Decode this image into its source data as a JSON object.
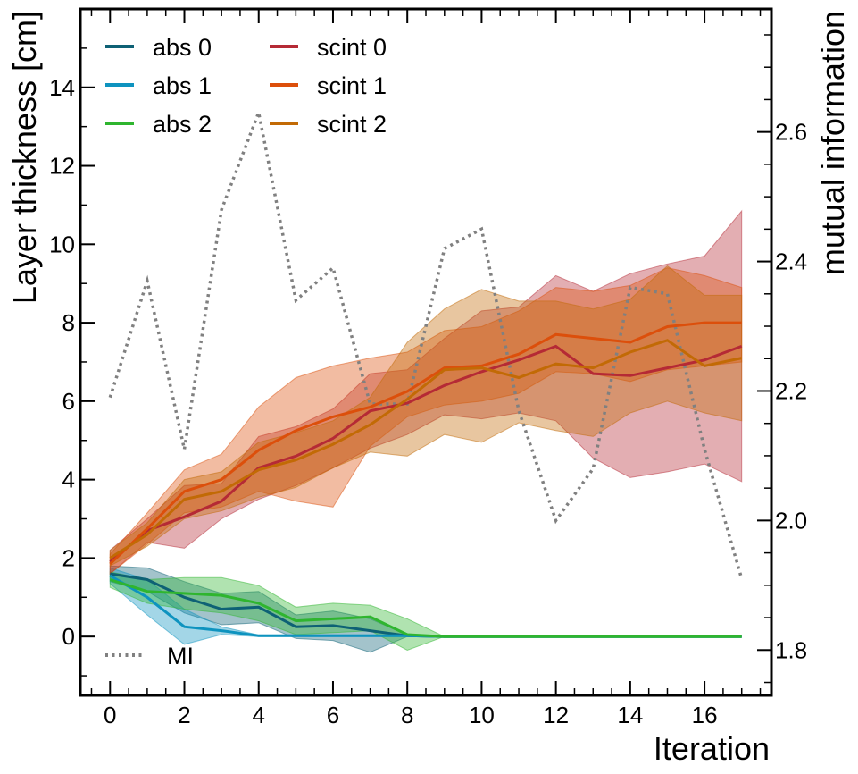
{
  "chart_data": {
    "type": "line",
    "xlabel": "Iteration",
    "ylabel": "Layer thickness [cm]",
    "y2label": "mutual information",
    "xlim": [
      -0.8,
      17.8
    ],
    "ylim": [
      -1.5,
      16
    ],
    "y2lim": [
      1.73,
      2.79
    ],
    "xticks": [
      0,
      2,
      4,
      6,
      8,
      10,
      12,
      14,
      16
    ],
    "yticks": [
      0,
      2,
      4,
      6,
      8,
      10,
      12,
      14
    ],
    "y2ticks": [
      1.8,
      2.0,
      2.2,
      2.4,
      2.6
    ],
    "x": [
      0,
      1,
      2,
      3,
      4,
      5,
      6,
      7,
      8,
      9,
      10,
      11,
      12,
      13,
      14,
      15,
      16,
      17
    ],
    "series": [
      {
        "name": "abs 0",
        "color": "#0e6175",
        "values": [
          1.6,
          1.45,
          1.0,
          0.7,
          0.75,
          0.25,
          0.28,
          0.15,
          0.02,
          0,
          0,
          0,
          0,
          0,
          0,
          0,
          0,
          0
        ],
        "lower": [
          1.4,
          1.15,
          0.6,
          0.3,
          0.35,
          -0.05,
          -0.1,
          -0.4,
          0,
          0,
          0,
          0,
          0,
          0,
          0,
          0,
          0,
          0
        ],
        "upper": [
          1.8,
          1.75,
          1.4,
          1.1,
          1.15,
          0.55,
          0.65,
          0.45,
          0.05,
          0,
          0,
          0,
          0,
          0,
          0,
          0,
          0,
          0
        ]
      },
      {
        "name": "abs 1",
        "color": "#0e93bf",
        "values": [
          1.55,
          1.0,
          0.25,
          0.15,
          0.02,
          0.02,
          0.02,
          0.02,
          0.02,
          0,
          0,
          0,
          0,
          0,
          0,
          0,
          0,
          0
        ],
        "lower": [
          1.35,
          0.55,
          -0.2,
          0.05,
          0,
          0,
          0,
          0,
          0,
          0,
          0,
          0,
          0,
          0,
          0,
          0,
          0,
          0
        ],
        "upper": [
          1.75,
          1.45,
          0.7,
          0.25,
          0.04,
          0.04,
          0.04,
          0.04,
          0.04,
          0,
          0,
          0,
          0,
          0,
          0,
          0,
          0,
          0
        ]
      },
      {
        "name": "abs 2",
        "color": "#2fb52f",
        "values": [
          1.45,
          1.15,
          1.1,
          1.05,
          0.85,
          0.4,
          0.45,
          0.5,
          0.05,
          0,
          0,
          0,
          0,
          0,
          0,
          0,
          0,
          0
        ],
        "lower": [
          1.25,
          0.85,
          0.7,
          0.6,
          0.4,
          0.05,
          0.1,
          0.15,
          -0.35,
          0,
          0,
          0,
          0,
          0,
          0,
          0,
          0,
          0
        ],
        "upper": [
          1.65,
          1.45,
          1.5,
          1.5,
          1.3,
          0.75,
          0.85,
          0.8,
          0.45,
          0,
          0,
          0,
          0,
          0,
          0,
          0,
          0,
          0
        ]
      },
      {
        "name": "scint 0",
        "color": "#b52a35",
        "values": [
          1.9,
          2.7,
          3.05,
          3.45,
          4.3,
          4.6,
          5.05,
          5.75,
          5.95,
          6.4,
          6.75,
          7.05,
          7.4,
          6.7,
          6.65,
          6.85,
          7.05,
          7.4
        ],
        "lower": [
          1.6,
          2.4,
          2.25,
          3.0,
          3.5,
          3.85,
          4.3,
          4.8,
          5.15,
          5.65,
          5.55,
          5.7,
          5.5,
          4.55,
          4.05,
          4.2,
          4.4,
          3.95
        ],
        "upper": [
          2.2,
          3.0,
          3.85,
          3.9,
          5.1,
          5.35,
          5.8,
          6.7,
          6.8,
          7.6,
          8.3,
          8.4,
          9.2,
          8.8,
          9.25,
          9.5,
          9.7,
          10.85
        ]
      },
      {
        "name": "scint 1",
        "color": "#dc4f0b",
        "values": [
          1.85,
          2.75,
          3.7,
          4.0,
          4.75,
          5.25,
          5.6,
          5.85,
          6.25,
          6.85,
          6.9,
          7.2,
          7.7,
          7.6,
          7.5,
          7.9,
          8.0,
          8.0
        ],
        "lower": [
          1.6,
          2.35,
          3.15,
          3.3,
          3.7,
          3.45,
          3.3,
          4.85,
          5.6,
          5.9,
          6.0,
          6.2,
          6.75,
          6.7,
          6.5,
          6.8,
          6.9,
          7.0
        ],
        "upper": [
          2.1,
          3.15,
          4.25,
          4.65,
          5.85,
          6.6,
          6.9,
          7.1,
          7.25,
          7.8,
          7.9,
          8.3,
          8.9,
          8.8,
          8.95,
          9.4,
          9.2,
          8.9
        ]
      },
      {
        "name": "scint 2",
        "color": "#c26a05",
        "values": [
          2.0,
          2.6,
          3.5,
          3.7,
          4.25,
          4.5,
          4.9,
          5.4,
          6.05,
          6.8,
          6.85,
          6.6,
          6.95,
          6.85,
          7.25,
          7.55,
          6.9,
          7.1
        ],
        "lower": [
          1.8,
          2.3,
          3.0,
          3.2,
          3.55,
          3.8,
          4.3,
          4.7,
          4.6,
          5.15,
          4.95,
          5.45,
          5.25,
          5.1,
          5.7,
          6.0,
          5.7,
          5.5
        ],
        "upper": [
          2.2,
          2.9,
          4.0,
          4.2,
          4.95,
          5.2,
          5.5,
          6.1,
          7.5,
          8.35,
          8.85,
          8.55,
          8.55,
          8.35,
          8.6,
          9.45,
          8.7,
          8.7
        ]
      }
    ],
    "mi_series": {
      "name": "MI",
      "color": "#808080",
      "values": [
        2.19,
        2.37,
        2.11,
        2.48,
        2.63,
        2.34,
        2.39,
        2.18,
        2.18,
        2.42,
        2.45,
        2.17,
        2.0,
        2.08,
        2.36,
        2.35,
        2.11,
        1.91
      ]
    },
    "legend": {
      "position": "top-left",
      "entries": [
        "abs 0",
        "abs 1",
        "abs 2",
        "scint 0",
        "scint 1",
        "scint 2"
      ],
      "mi_position": "bottom-left"
    }
  }
}
